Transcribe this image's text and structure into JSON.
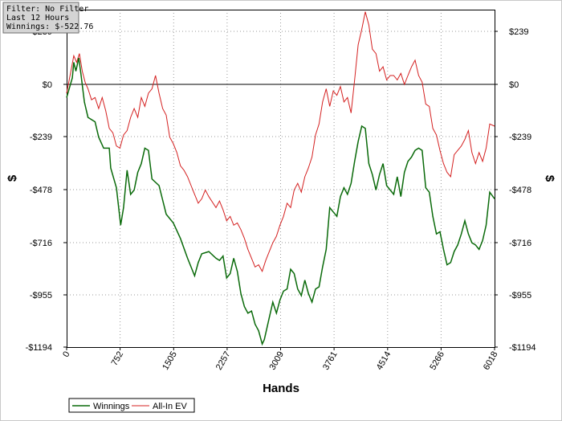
{
  "info_box": {
    "filter": "Filter: No Filter",
    "period": "Last  12 Hours",
    "winnings": "Winnings: $-522.76"
  },
  "colors": {
    "winnings": "#0a6a0a",
    "all_in_ev": "#d42020"
  },
  "chart_data": {
    "type": "line",
    "xlabel": "Hands",
    "ylabel": "$",
    "xlim": [
      0,
      6018
    ],
    "ylim": [
      -1194,
      340
    ],
    "x_ticks": [
      0,
      752,
      1505,
      2257,
      3009,
      3761,
      4514,
      5266,
      6018
    ],
    "x_tick_labels": [
      "0",
      "752",
      "1505",
      "2257",
      "3009",
      "3761",
      "4514",
      "5266",
      "6018"
    ],
    "y_ticks": [
      239,
      0,
      -239,
      -478,
      -716,
      -955,
      -1194
    ],
    "y_tick_labels": [
      "$239",
      "$0",
      "-$239",
      "-$478",
      "-$716",
      "-$955",
      "-$1194"
    ],
    "grid": true,
    "legend_position": "bottom-left",
    "series": [
      {
        "name": "Winnings",
        "points": [
          [
            0,
            -60
          ],
          [
            80,
            30
          ],
          [
            100,
            100
          ],
          [
            130,
            60
          ],
          [
            170,
            120
          ],
          [
            200,
            50
          ],
          [
            250,
            -80
          ],
          [
            300,
            -150
          ],
          [
            400,
            -170
          ],
          [
            450,
            -240
          ],
          [
            520,
            -290
          ],
          [
            600,
            -290
          ],
          [
            620,
            -380
          ],
          [
            700,
            -470
          ],
          [
            760,
            -640
          ],
          [
            800,
            -560
          ],
          [
            850,
            -390
          ],
          [
            900,
            -500
          ],
          [
            950,
            -480
          ],
          [
            1000,
            -400
          ],
          [
            1050,
            -360
          ],
          [
            1100,
            -290
          ],
          [
            1150,
            -300
          ],
          [
            1200,
            -430
          ],
          [
            1300,
            -460
          ],
          [
            1400,
            -590
          ],
          [
            1500,
            -630
          ],
          [
            1600,
            -700
          ],
          [
            1700,
            -790
          ],
          [
            1800,
            -870
          ],
          [
            1850,
            -810
          ],
          [
            1900,
            -770
          ],
          [
            2000,
            -760
          ],
          [
            2100,
            -790
          ],
          [
            2150,
            -800
          ],
          [
            2200,
            -780
          ],
          [
            2250,
            -880
          ],
          [
            2300,
            -860
          ],
          [
            2350,
            -790
          ],
          [
            2400,
            -850
          ],
          [
            2450,
            -950
          ],
          [
            2500,
            -1010
          ],
          [
            2550,
            -1040
          ],
          [
            2600,
            -1030
          ],
          [
            2650,
            -1090
          ],
          [
            2700,
            -1120
          ],
          [
            2750,
            -1180
          ],
          [
            2780,
            -1160
          ],
          [
            2850,
            -1060
          ],
          [
            2900,
            -990
          ],
          [
            2950,
            -1040
          ],
          [
            3000,
            -980
          ],
          [
            3050,
            -940
          ],
          [
            3100,
            -930
          ],
          [
            3150,
            -840
          ],
          [
            3200,
            -860
          ],
          [
            3250,
            -930
          ],
          [
            3300,
            -960
          ],
          [
            3350,
            -890
          ],
          [
            3400,
            -950
          ],
          [
            3450,
            -990
          ],
          [
            3500,
            -930
          ],
          [
            3550,
            -920
          ],
          [
            3600,
            -830
          ],
          [
            3650,
            -750
          ],
          [
            3700,
            -560
          ],
          [
            3750,
            -580
          ],
          [
            3800,
            -600
          ],
          [
            3850,
            -510
          ],
          [
            3900,
            -470
          ],
          [
            3950,
            -500
          ],
          [
            4000,
            -450
          ],
          [
            4050,
            -350
          ],
          [
            4100,
            -260
          ],
          [
            4150,
            -190
          ],
          [
            4200,
            -200
          ],
          [
            4250,
            -360
          ],
          [
            4300,
            -410
          ],
          [
            4350,
            -480
          ],
          [
            4400,
            -410
          ],
          [
            4450,
            -360
          ],
          [
            4500,
            -460
          ],
          [
            4550,
            -480
          ],
          [
            4600,
            -500
          ],
          [
            4650,
            -420
          ],
          [
            4700,
            -510
          ],
          [
            4750,
            -400
          ],
          [
            4800,
            -350
          ],
          [
            4850,
            -330
          ],
          [
            4900,
            -300
          ],
          [
            4950,
            -290
          ],
          [
            5000,
            -300
          ],
          [
            5050,
            -470
          ],
          [
            5100,
            -490
          ],
          [
            5150,
            -600
          ],
          [
            5200,
            -680
          ],
          [
            5250,
            -670
          ],
          [
            5300,
            -750
          ],
          [
            5350,
            -820
          ],
          [
            5400,
            -810
          ],
          [
            5450,
            -760
          ],
          [
            5500,
            -730
          ],
          [
            5550,
            -680
          ],
          [
            5600,
            -620
          ],
          [
            5650,
            -680
          ],
          [
            5700,
            -720
          ],
          [
            5750,
            -730
          ],
          [
            5800,
            -750
          ],
          [
            5850,
            -710
          ],
          [
            5900,
            -640
          ],
          [
            5950,
            -490
          ],
          [
            6018,
            -520
          ]
        ]
      },
      {
        "name": "All-In EV",
        "points": [
          [
            0,
            -40
          ],
          [
            60,
            60
          ],
          [
            100,
            130
          ],
          [
            140,
            100
          ],
          [
            180,
            140
          ],
          [
            220,
            60
          ],
          [
            260,
            10
          ],
          [
            300,
            -20
          ],
          [
            350,
            -70
          ],
          [
            400,
            -60
          ],
          [
            450,
            -110
          ],
          [
            500,
            -60
          ],
          [
            550,
            -120
          ],
          [
            600,
            -200
          ],
          [
            650,
            -220
          ],
          [
            700,
            -280
          ],
          [
            750,
            -290
          ],
          [
            800,
            -230
          ],
          [
            850,
            -210
          ],
          [
            900,
            -150
          ],
          [
            950,
            -110
          ],
          [
            1000,
            -150
          ],
          [
            1050,
            -60
          ],
          [
            1100,
            -100
          ],
          [
            1150,
            -40
          ],
          [
            1200,
            -20
          ],
          [
            1250,
            40
          ],
          [
            1300,
            -40
          ],
          [
            1350,
            -110
          ],
          [
            1400,
            -140
          ],
          [
            1450,
            -240
          ],
          [
            1500,
            -270
          ],
          [
            1550,
            -310
          ],
          [
            1600,
            -370
          ],
          [
            1650,
            -390
          ],
          [
            1700,
            -420
          ],
          [
            1750,
            -460
          ],
          [
            1800,
            -500
          ],
          [
            1850,
            -540
          ],
          [
            1900,
            -520
          ],
          [
            1950,
            -480
          ],
          [
            2000,
            -510
          ],
          [
            2100,
            -560
          ],
          [
            2150,
            -530
          ],
          [
            2200,
            -570
          ],
          [
            2250,
            -620
          ],
          [
            2300,
            -600
          ],
          [
            2350,
            -640
          ],
          [
            2400,
            -630
          ],
          [
            2450,
            -660
          ],
          [
            2500,
            -700
          ],
          [
            2550,
            -750
          ],
          [
            2600,
            -790
          ],
          [
            2650,
            -830
          ],
          [
            2700,
            -820
          ],
          [
            2750,
            -850
          ],
          [
            2800,
            -800
          ],
          [
            2850,
            -760
          ],
          [
            2900,
            -720
          ],
          [
            2950,
            -690
          ],
          [
            3000,
            -640
          ],
          [
            3050,
            -600
          ],
          [
            3100,
            -540
          ],
          [
            3150,
            -560
          ],
          [
            3200,
            -480
          ],
          [
            3250,
            -450
          ],
          [
            3300,
            -490
          ],
          [
            3350,
            -420
          ],
          [
            3400,
            -380
          ],
          [
            3450,
            -330
          ],
          [
            3500,
            -230
          ],
          [
            3550,
            -180
          ],
          [
            3600,
            -80
          ],
          [
            3650,
            -20
          ],
          [
            3700,
            -100
          ],
          [
            3750,
            -30
          ],
          [
            3800,
            -50
          ],
          [
            3850,
            -10
          ],
          [
            3900,
            -80
          ],
          [
            3950,
            -60
          ],
          [
            4000,
            -130
          ],
          [
            4050,
            20
          ],
          [
            4100,
            180
          ],
          [
            4150,
            250
          ],
          [
            4200,
            330
          ],
          [
            4250,
            270
          ],
          [
            4300,
            160
          ],
          [
            4350,
            140
          ],
          [
            4400,
            60
          ],
          [
            4450,
            80
          ],
          [
            4500,
            20
          ],
          [
            4550,
            40
          ],
          [
            4600,
            40
          ],
          [
            4650,
            20
          ],
          [
            4700,
            50
          ],
          [
            4750,
            0
          ],
          [
            4800,
            40
          ],
          [
            4850,
            80
          ],
          [
            4900,
            110
          ],
          [
            4950,
            40
          ],
          [
            5000,
            10
          ],
          [
            5050,
            -90
          ],
          [
            5100,
            -100
          ],
          [
            5150,
            -200
          ],
          [
            5200,
            -230
          ],
          [
            5250,
            -300
          ],
          [
            5300,
            -360
          ],
          [
            5350,
            -400
          ],
          [
            5400,
            -420
          ],
          [
            5450,
            -320
          ],
          [
            5500,
            -300
          ],
          [
            5550,
            -280
          ],
          [
            5600,
            -250
          ],
          [
            5650,
            -210
          ],
          [
            5700,
            -310
          ],
          [
            5750,
            -360
          ],
          [
            5800,
            -310
          ],
          [
            5850,
            -350
          ],
          [
            5900,
            -290
          ],
          [
            5950,
            -180
          ],
          [
            6018,
            -190
          ]
        ]
      }
    ]
  }
}
